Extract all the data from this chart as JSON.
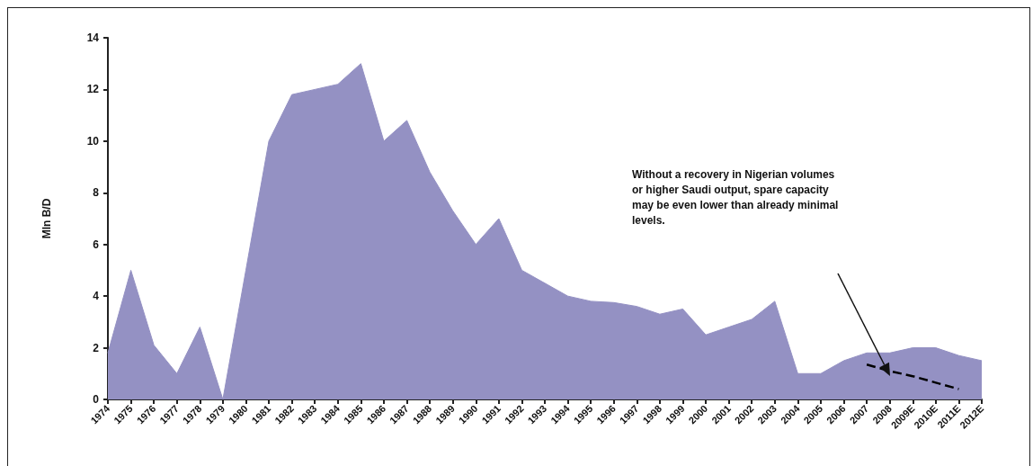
{
  "chart_data": {
    "type": "area",
    "ylabel": "Mln B/D",
    "categories": [
      "1974",
      "1975",
      "1976",
      "1977",
      "1978",
      "1979",
      "1980",
      "1981",
      "1982",
      "1983",
      "1984",
      "1985",
      "1986",
      "1987",
      "1988",
      "1989",
      "1990",
      "1991",
      "1992",
      "1993",
      "1994",
      "1995",
      "1996",
      "1997",
      "1998",
      "1999",
      "2000",
      "2001",
      "2002",
      "2003",
      "2004",
      "2005",
      "2006",
      "2007",
      "2008",
      "2009E",
      "2010E",
      "2011E",
      "2012E"
    ],
    "series": [
      {
        "color": "#9491c3",
        "values": [
          1.8,
          5.0,
          2.1,
          1.0,
          2.8,
          0,
          5.0,
          10.0,
          11.8,
          12.0,
          12.2,
          13.0,
          10.0,
          10.8,
          8.8,
          7.3,
          6.0,
          7.0,
          5.0,
          4.5,
          4.0,
          3.8,
          3.75,
          3.6,
          3.3,
          3.5,
          2.5,
          2.8,
          3.1,
          3.8,
          1.0,
          1.0,
          1.5,
          1.8,
          1.8,
          2.0,
          2.0,
          1.7,
          1.5
        ]
      },
      {
        "type": "line",
        "color": "#000000",
        "line_style": "dashed",
        "values": [
          null,
          null,
          null,
          null,
          null,
          null,
          null,
          null,
          null,
          null,
          null,
          null,
          null,
          null,
          null,
          null,
          null,
          null,
          null,
          null,
          null,
          null,
          null,
          null,
          null,
          null,
          null,
          null,
          null,
          null,
          null,
          null,
          null,
          1.35,
          1.1,
          0.9,
          0.65,
          0.4,
          null
        ]
      }
    ],
    "ylim": [
      0,
      14
    ],
    "yticks": [
      0,
      2,
      4,
      6,
      8,
      10,
      12,
      14
    ],
    "grid": false,
    "marker": "none",
    "annotations": [
      "Without a recovery in Nigerian volumes or higher Saudi output, spare capacity may be even lower than already minimal levels."
    ]
  }
}
